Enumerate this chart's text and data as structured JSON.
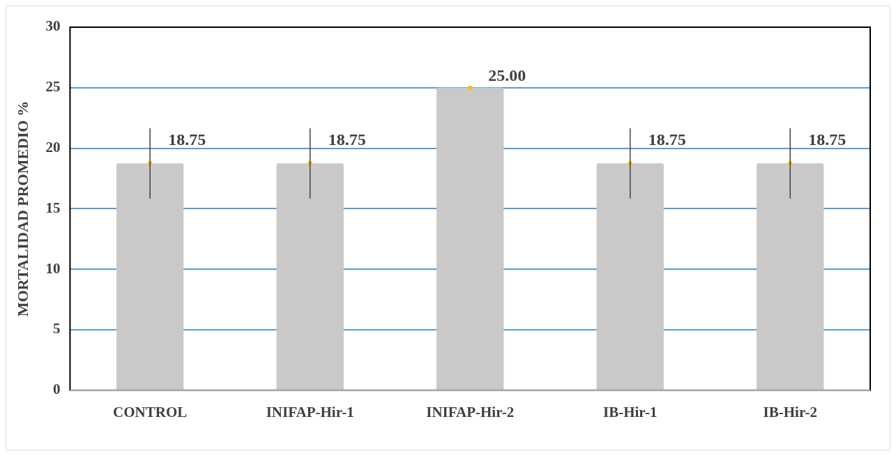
{
  "chart_data": {
    "type": "bar",
    "ylabel": "MORTALIDAD PROMEDIO %",
    "categories": [
      "CONTROL",
      "INIFAP-Hir-1",
      "INIFAP-Hir-2",
      "IB-Hir-1",
      "IB-Hir-2"
    ],
    "series": [
      {
        "color": "#c9c9c9",
        "values": [
          18.75,
          18.75,
          25,
          18.75,
          18.75
        ],
        "errors": [
          2.9,
          2.9,
          null,
          2.9,
          2.9
        ],
        "value_labels": [
          "18.75",
          "18.75",
          "25.00",
          "18.75",
          "18.75"
        ]
      },
      {
        "type": "scatter",
        "color": "#ffc000",
        "x": [
          "CONTROL",
          "INIFAP-Hir-1",
          "INIFAP-Hir-2",
          "IB-Hir-1",
          "IB-Hir-2"
        ],
        "values": [
          18.75,
          18.75,
          25,
          18.75,
          18.75
        ],
        "marker": "square"
      }
    ],
    "ylim": [
      0,
      30
    ],
    "yticks": [
      0,
      5,
      10,
      15,
      20,
      25,
      30
    ],
    "grid": "y",
    "legend": false
  }
}
